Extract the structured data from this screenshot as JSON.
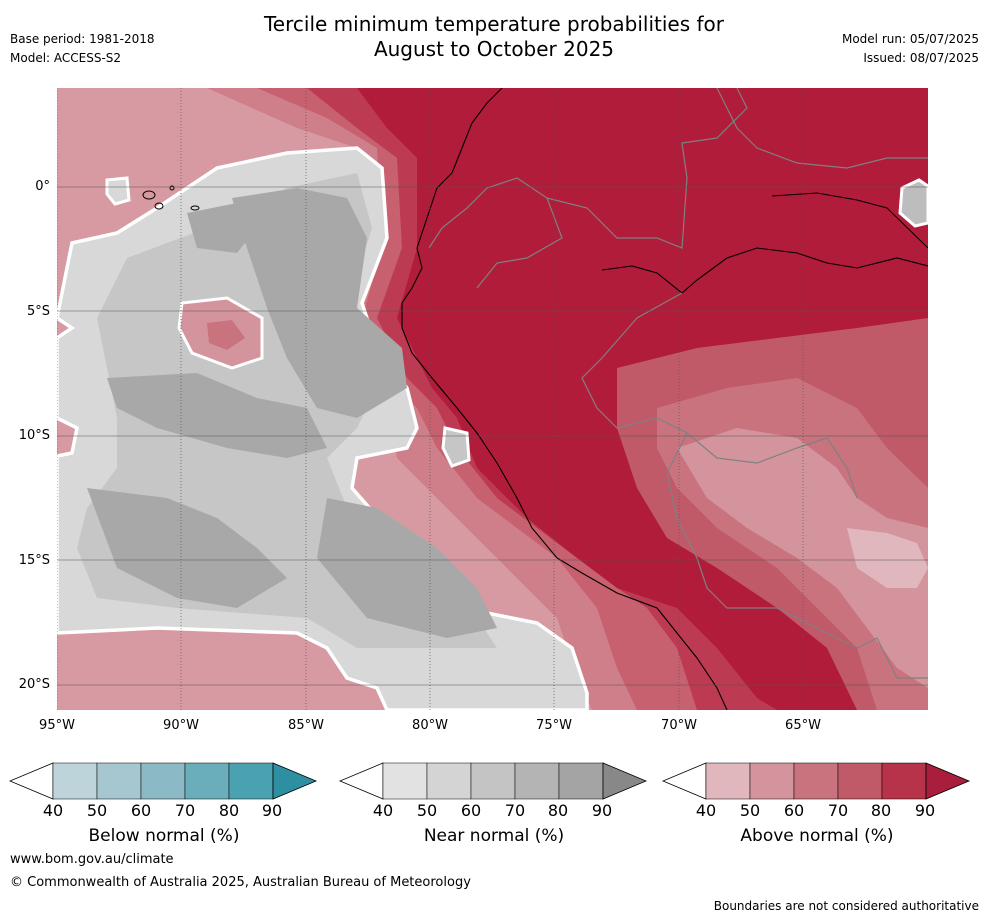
{
  "title_line1": "Tercile minimum temperature probabilities for",
  "title_line2": "August to October 2025",
  "base_period": "Base period: 1981-2018",
  "model": "Model: ACCESS-S2",
  "model_run": "Model run: 05/07/2025",
  "issued": "Issued: 08/07/2025",
  "map": {
    "lon_range": [
      -95,
      -60
    ],
    "lat_range": [
      -21,
      4
    ],
    "lat_ticks": [
      "0°",
      "5°S",
      "10°S",
      "15°S",
      "20°S"
    ],
    "lon_ticks": [
      "95°W",
      "90°W",
      "85°W",
      "80°W",
      "75°W",
      "70°W",
      "65°W"
    ],
    "colors": {
      "land_background": "#b11c3a",
      "near_normal_60": "#c8c8c8",
      "near_normal_70": "#a9a9a9",
      "near_normal_50": "#d8d8d8",
      "coastline": "#000000",
      "borders": "#808080"
    }
  },
  "colorbars": [
    {
      "label": "Below normal (%)",
      "ticks": [
        "40",
        "50",
        "60",
        "70",
        "80",
        "90"
      ],
      "colors": [
        "#ffffff",
        "#bcd4da",
        "#a6c7cf",
        "#8bb9c5",
        "#6aaebb",
        "#4aa2b1",
        "#2e8fa3"
      ]
    },
    {
      "label": "Near normal (%)",
      "ticks": [
        "40",
        "50",
        "60",
        "70",
        "80",
        "90"
      ],
      "colors": [
        "#ffffff",
        "#e2e2e2",
        "#d4d4d4",
        "#c4c4c4",
        "#b4b4b4",
        "#a4a4a4",
        "#888888"
      ]
    },
    {
      "label": "Above normal (%)",
      "ticks": [
        "40",
        "50",
        "60",
        "70",
        "80",
        "90"
      ],
      "colors": [
        "#ffffff",
        "#dfb7bd",
        "#d4949d",
        "#c9737f",
        "#c05a69",
        "#b63349",
        "#a81e3c"
      ]
    }
  ],
  "website": "www.bom.gov.au/climate",
  "copyright": "© Commonwealth of Australia 2025, Australian Bureau of Meteorology",
  "disclaimer": "Boundaries are not considered authoritative"
}
